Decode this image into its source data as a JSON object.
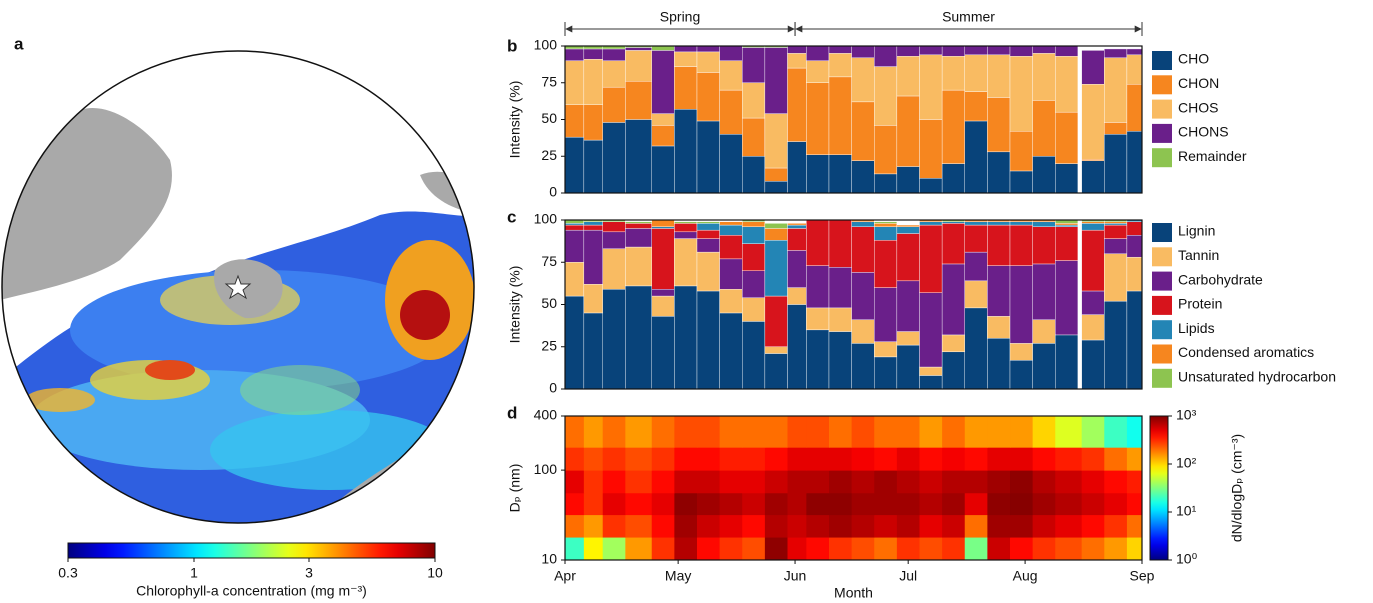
{
  "chart_data": [
    {
      "panel": "a",
      "type": "map",
      "colorbar": {
        "label": "Chlorophyll-a concentration (mg m⁻³)",
        "lim": [
          0.3,
          10
        ],
        "ticks": [
          0.3,
          1,
          3,
          10
        ],
        "log": true
      }
    },
    {
      "panel": "b",
      "type": "bar",
      "stacked": true,
      "legend": "outside-right",
      "ylabel": "Intensity (%)",
      "ylim": [
        0,
        100
      ],
      "yticks": [
        0,
        25,
        50,
        75,
        100
      ],
      "xlim": [
        0,
        153
      ],
      "periods": [
        {
          "label": "Spring",
          "range": [
            0,
            61
          ]
        },
        {
          "label": "Summer",
          "range": [
            61,
            153
          ]
        }
      ],
      "x": [
        0,
        5,
        10,
        16,
        23,
        29,
        35,
        41,
        47,
        53,
        59,
        64,
        70,
        76,
        82,
        88,
        94,
        100,
        106,
        112,
        118,
        124,
        130,
        136,
        137,
        143,
        149
      ],
      "series": [
        {
          "name": "CHO",
          "color": "#08437a",
          "values": [
            38,
            36,
            48,
            50,
            32,
            57,
            49,
            40,
            25,
            8,
            35,
            26,
            26,
            22,
            13,
            18,
            10,
            20,
            49,
            28,
            15,
            25,
            20,
            null,
            22,
            40,
            42
          ]
        },
        {
          "name": "CHON",
          "color": "#f6861f",
          "values": [
            22,
            24,
            24,
            26,
            14,
            29,
            33,
            30,
            26,
            9,
            50,
            49,
            53,
            40,
            33,
            48,
            40,
            50,
            20,
            37,
            27,
            38,
            35,
            null,
            1,
            8,
            32
          ]
        },
        {
          "name": "CHOS",
          "color": "#f9bb62",
          "values": [
            30,
            31,
            18,
            21,
            8,
            10,
            14,
            20,
            24,
            37,
            10,
            15,
            16,
            30,
            40,
            27,
            44,
            23,
            25,
            29,
            51,
            32,
            38,
            null,
            51,
            44,
            20
          ]
        },
        {
          "name": "CHONS",
          "color": "#6a1f8a",
          "values": [
            8,
            7,
            8,
            2,
            43,
            4,
            4,
            10,
            24,
            45,
            5,
            10,
            5,
            8,
            14,
            7,
            6,
            7,
            6,
            6,
            7,
            5,
            7,
            null,
            23,
            6,
            4
          ]
        },
        {
          "name": "Remainder",
          "color": "#8dc450",
          "values": [
            2,
            2,
            2,
            1,
            3,
            0,
            0,
            0,
            1,
            1,
            0,
            0,
            0,
            0,
            0,
            0,
            0,
            0,
            0,
            0,
            0,
            0,
            0,
            null,
            0,
            0,
            0
          ]
        }
      ]
    },
    {
      "panel": "c",
      "type": "bar",
      "stacked": true,
      "legend": "outside-right",
      "ylabel": "Intensity (%)",
      "ylim": [
        0,
        100
      ],
      "yticks": [
        0,
        25,
        50,
        75,
        100
      ],
      "xlim": [
        0,
        153
      ],
      "x": [
        0,
        5,
        10,
        16,
        23,
        29,
        35,
        41,
        47,
        53,
        59,
        64,
        70,
        76,
        82,
        88,
        94,
        100,
        106,
        112,
        118,
        124,
        130,
        136,
        137,
        143,
        149
      ],
      "series": [
        {
          "name": "Lignin",
          "color": "#08437a",
          "values": [
            55,
            45,
            59,
            61,
            43,
            61,
            58,
            45,
            40,
            21,
            50,
            35,
            34,
            27,
            19,
            26,
            8,
            22,
            48,
            30,
            17,
            27,
            32,
            null,
            29,
            52,
            58
          ]
        },
        {
          "name": "Tannin",
          "color": "#f9bb62",
          "values": [
            20,
            17,
            24,
            23,
            12,
            28,
            23,
            14,
            14,
            4,
            10,
            13,
            14,
            14,
            9,
            8,
            5,
            10,
            16,
            13,
            10,
            14,
            0,
            null,
            15,
            28,
            20
          ]
        },
        {
          "name": "Carbohydrate",
          "color": "#6a1f8a",
          "values": [
            19,
            32,
            10,
            11,
            4,
            4,
            8,
            18,
            16,
            0,
            22,
            25,
            24,
            28,
            32,
            30,
            44,
            42,
            17,
            30,
            46,
            33,
            44,
            null,
            14,
            9,
            13
          ]
        },
        {
          "name": "Protein",
          "color": "#d7141c",
          "values": [
            3,
            3,
            6,
            3,
            36,
            5,
            5,
            14,
            16,
            30,
            13,
            27,
            28,
            27,
            28,
            28,
            40,
            24,
            16,
            24,
            24,
            22,
            20,
            null,
            36,
            8,
            8
          ]
        },
        {
          "name": "Lipids",
          "color": "#2385b5",
          "values": [
            1,
            2,
            0,
            0,
            1,
            0,
            4,
            6,
            10,
            33,
            2,
            0,
            0,
            3,
            8,
            4,
            2,
            1,
            2,
            2,
            2,
            3,
            1,
            null,
            4,
            1,
            1
          ]
        },
        {
          "name": "Condensed aromatics",
          "color": "#f6861f",
          "values": [
            0,
            0,
            0,
            0,
            4,
            0,
            0,
            2,
            3,
            7,
            1,
            0,
            0,
            1,
            2,
            1,
            1,
            0,
            1,
            1,
            1,
            1,
            1,
            null,
            1,
            1,
            0
          ]
        },
        {
          "name": "Unsaturated hydrocarbon",
          "color": "#8dc450",
          "values": [
            2,
            1,
            1,
            1,
            0,
            1,
            1,
            0,
            1,
            3,
            0,
            0,
            0,
            0,
            1,
            0,
            0,
            1,
            0,
            0,
            0,
            0,
            2,
            null,
            1,
            1,
            0
          ]
        }
      ]
    },
    {
      "panel": "d",
      "type": "heatmap",
      "xlabel": "Month",
      "ylabel": "Dₚ (nm)",
      "xlim": [
        0,
        153
      ],
      "xticks": [
        {
          "value": 0,
          "label": "Apr"
        },
        {
          "value": 30,
          "label": "May"
        },
        {
          "value": 61,
          "label": "Jun"
        },
        {
          "value": 91,
          "label": "Jul"
        },
        {
          "value": 122,
          "label": "Aug"
        },
        {
          "value": 153,
          "label": "Sep"
        }
      ],
      "x": [
        0,
        5,
        10,
        16,
        23,
        29,
        35,
        41,
        47,
        53,
        59,
        64,
        70,
        76,
        82,
        88,
        94,
        100,
        106,
        112,
        118,
        124,
        130,
        137,
        143,
        149
      ],
      "y_edges": [
        10,
        18,
        32,
        56,
        100,
        180,
        400
      ],
      "ylim": [
        10,
        400
      ],
      "yticks": [
        10,
        100,
        400
      ],
      "log_y": true,
      "z": [
        [
          20,
          80,
          40,
          150,
          300,
          700,
          400,
          300,
          250,
          900,
          500,
          400,
          300,
          250,
          200,
          300,
          250,
          300,
          30,
          600,
          400,
          300,
          250,
          200,
          150,
          100
        ],
        [
          200,
          150,
          300,
          250,
          400,
          800,
          600,
          500,
          400,
          700,
          600,
          700,
          800,
          700,
          600,
          700,
          500,
          600,
          200,
          800,
          800,
          600,
          500,
          400,
          300,
          200
        ],
        [
          400,
          300,
          500,
          400,
          500,
          900,
          800,
          700,
          600,
          800,
          700,
          900,
          900,
          800,
          800,
          800,
          700,
          800,
          500,
          900,
          950,
          800,
          700,
          600,
          500,
          400
        ],
        [
          500,
          300,
          400,
          300,
          400,
          600,
          600,
          500,
          500,
          600,
          700,
          700,
          800,
          700,
          800,
          700,
          600,
          700,
          700,
          800,
          900,
          700,
          600,
          500,
          400,
          350
        ],
        [
          300,
          250,
          300,
          250,
          300,
          400,
          400,
          350,
          350,
          400,
          500,
          500,
          500,
          450,
          400,
          500,
          400,
          450,
          400,
          500,
          500,
          400,
          350,
          300,
          200,
          150
        ],
        [
          200,
          150,
          200,
          150,
          200,
          250,
          250,
          200,
          200,
          200,
          250,
          250,
          200,
          250,
          200,
          200,
          150,
          200,
          150,
          150,
          150,
          100,
          60,
          40,
          20,
          15
        ]
      ],
      "colorbar": {
        "label": "dN/dlogDₚ (cm⁻³)",
        "lim": [
          1,
          1000
        ],
        "log": true,
        "ticks": [
          {
            "value": 1,
            "label": "10⁰"
          },
          {
            "value": 10,
            "label": "10¹"
          },
          {
            "value": 100,
            "label": "10²"
          },
          {
            "value": 1000,
            "label": "10³"
          }
        ]
      }
    }
  ]
}
